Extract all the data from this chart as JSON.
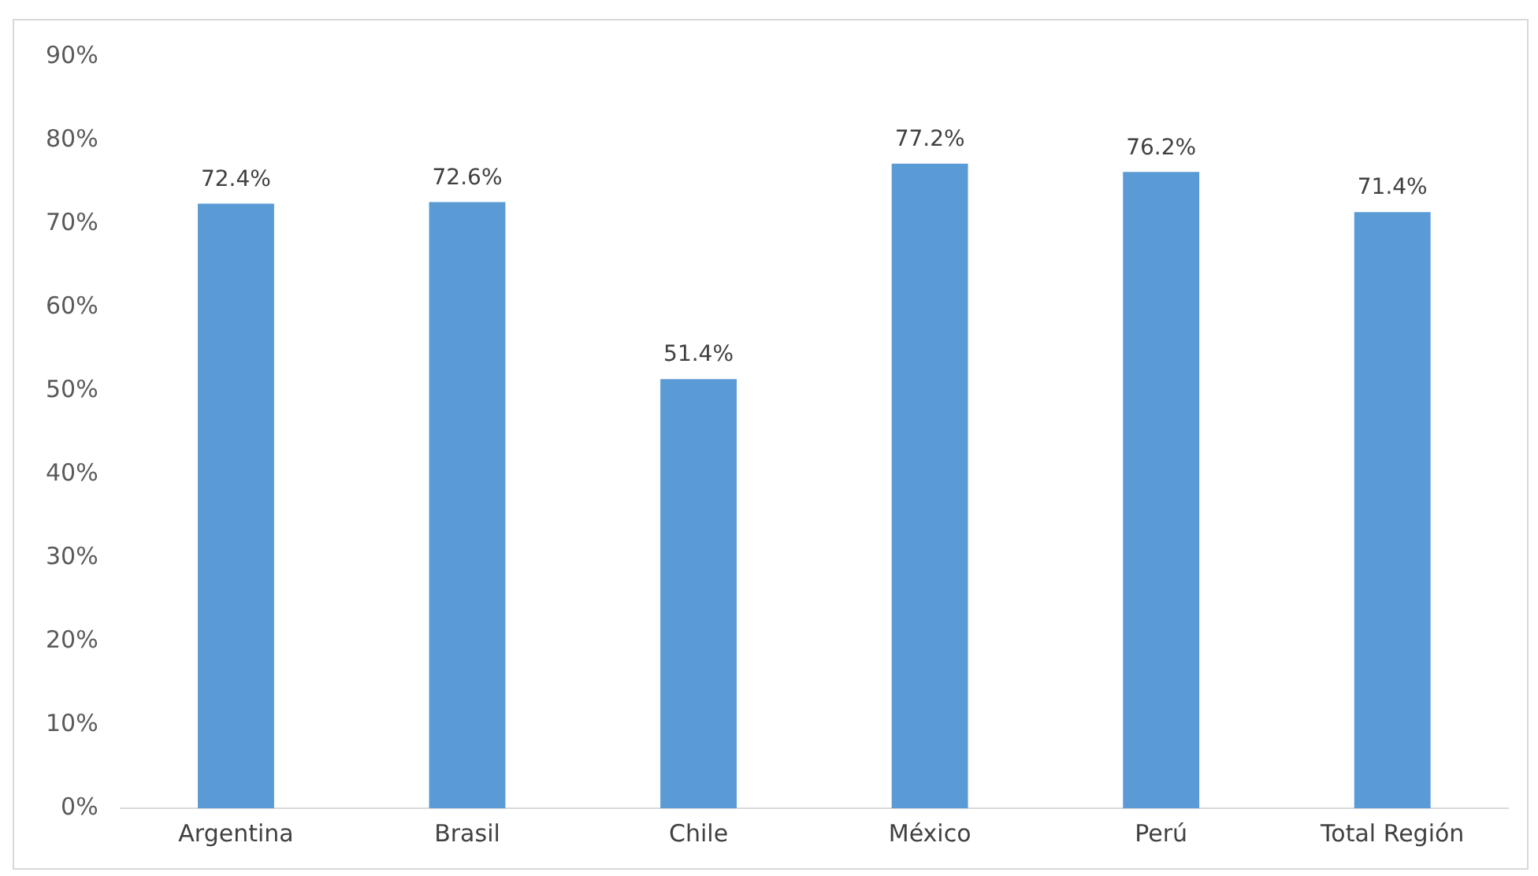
{
  "chart_data": {
    "type": "bar",
    "categories": [
      "Argentina",
      "Brasil",
      "Chile",
      "México",
      "Perú",
      "Total Región"
    ],
    "values": [
      72.4,
      72.6,
      51.4,
      77.2,
      76.2,
      71.4
    ],
    "value_labels": [
      "72.4%",
      "72.6%",
      "51.4%",
      "77.2%",
      "76.2%",
      "71.4%"
    ],
    "color": "#5b9bd5",
    "ylim": [
      0,
      90
    ],
    "yticks": [
      {
        "value": 0,
        "label": "0%"
      },
      {
        "value": 10,
        "label": "10%"
      },
      {
        "value": 20,
        "label": "20%"
      },
      {
        "value": 30,
        "label": "30%"
      },
      {
        "value": 40,
        "label": "40%"
      },
      {
        "value": 50,
        "label": "50%"
      },
      {
        "value": 60,
        "label": "60%"
      },
      {
        "value": 70,
        "label": "70%"
      },
      {
        "value": 80,
        "label": "80%"
      },
      {
        "value": 90,
        "label": "90%"
      }
    ],
    "grid": false,
    "legend": false
  }
}
